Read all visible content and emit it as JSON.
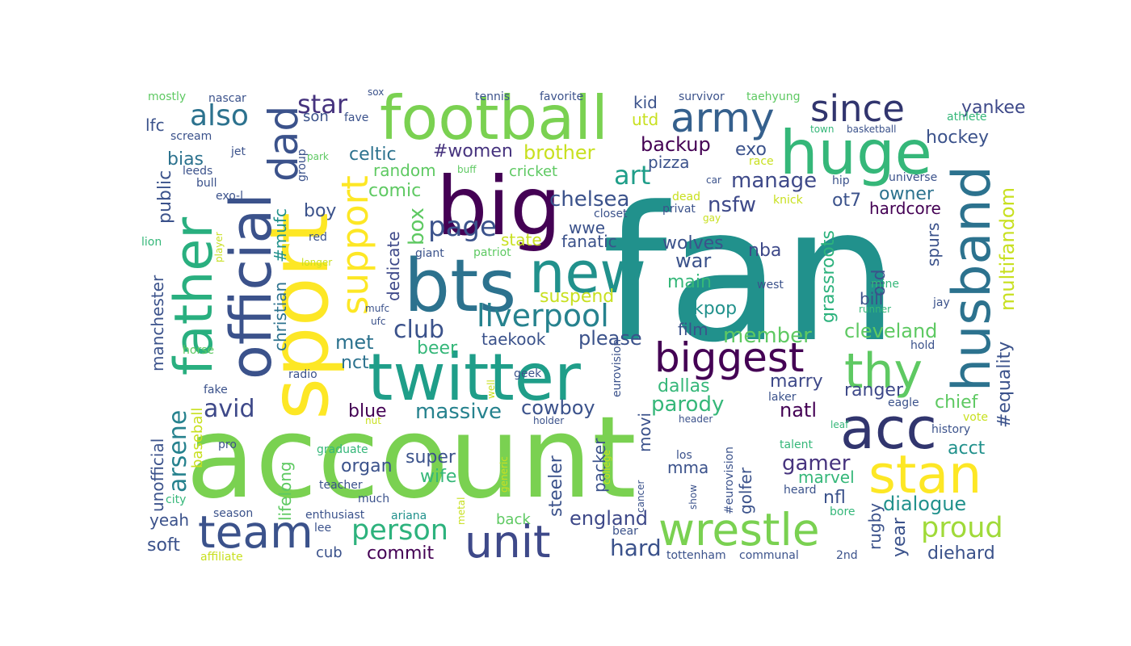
{
  "palette": {
    "darkpurple": "#46337e",
    "indigo": "#3b4e8c",
    "blue": "#33628d",
    "teal": "#218f8d",
    "tealgreen": "#1fa188",
    "green": "#2db27d",
    "lime": "#5ec962",
    "lightgreen": "#79d151",
    "yellow": "#dde318",
    "deeppurple": "#440154"
  },
  "words": [
    {
      "text": "fan",
      "color": "#21918c"
    },
    {
      "text": "account",
      "color": "#7ad151"
    },
    {
      "text": "sport",
      "color": "#fde725"
    },
    {
      "text": "big",
      "color": "#440154"
    },
    {
      "text": "twitter",
      "color": "#1f9e89"
    },
    {
      "text": "bts",
      "color": "#2c728e"
    },
    {
      "text": "football",
      "color": "#7ad151"
    },
    {
      "text": "huge",
      "color": "#35b779"
    },
    {
      "text": "official",
      "color": "#3b528b"
    },
    {
      "text": "new",
      "color": "#21918c"
    },
    {
      "text": "acc",
      "color": "#31356e"
    },
    {
      "text": "husband",
      "color": "#2c728e"
    },
    {
      "text": "father",
      "color": "#29af7f"
    },
    {
      "text": "stan",
      "color": "#fde725"
    },
    {
      "text": "wrestle",
      "color": "#7ad151"
    },
    {
      "text": "unit",
      "color": "#3e4989"
    },
    {
      "text": "team",
      "color": "#3b528b"
    },
    {
      "text": "biggest",
      "color": "#440154"
    },
    {
      "text": "thy",
      "color": "#5ec962"
    },
    {
      "text": "dad",
      "color": "#3b528b"
    },
    {
      "text": "support",
      "color": "#fde725"
    },
    {
      "text": "army",
      "color": "#35608d"
    },
    {
      "text": "since",
      "color": "#31356e"
    },
    {
      "text": "liverpool",
      "color": "#26828e"
    },
    {
      "text": "person",
      "color": "#2db27d"
    },
    {
      "text": "proud",
      "color": "#a0da39"
    },
    {
      "text": "also",
      "color": "#2c728e"
    },
    {
      "text": "star",
      "color": "#46337e"
    },
    {
      "text": "art",
      "color": "#1f9e89"
    },
    {
      "text": "page",
      "color": "#3b528b"
    },
    {
      "text": "club",
      "color": "#3b528b"
    },
    {
      "text": "arsene",
      "color": "#26828e"
    },
    {
      "text": "avid",
      "color": "#3e4989"
    },
    {
      "text": "multifandom",
      "color": "#c8e020"
    },
    {
      "text": "gamer",
      "color": "#46337e"
    },
    {
      "text": "hard",
      "color": "#3b528b"
    },
    {
      "text": "yankee",
      "color": "#3e4989"
    },
    {
      "text": "hockey",
      "color": "#3b528b"
    },
    {
      "text": "manage",
      "color": "#3e4989"
    },
    {
      "text": "chelsea",
      "color": "#3b528b"
    },
    {
      "text": "backup",
      "color": "#440154"
    },
    {
      "text": "exo",
      "color": "#3b528b"
    },
    {
      "text": "nsfw",
      "color": "#3e4989"
    },
    {
      "text": "owner",
      "color": "#2c728e"
    },
    {
      "text": "ot7",
      "color": "#3b528b"
    },
    {
      "text": "grassroots",
      "color": "#2db27d"
    },
    {
      "text": "hardcore",
      "color": "#440154"
    },
    {
      "text": "celtic",
      "color": "#2c728e"
    },
    {
      "text": "#women",
      "color": "#46337e"
    },
    {
      "text": "brother",
      "color": "#c8e020"
    },
    {
      "text": "random",
      "color": "#5ec962"
    },
    {
      "text": "cricket",
      "color": "#5ec962"
    },
    {
      "text": "comic",
      "color": "#5ec962"
    },
    {
      "text": "pizza",
      "color": "#3b528b"
    },
    {
      "text": "massive",
      "color": "#26828e"
    },
    {
      "text": "cowboy",
      "color": "#3b528b"
    },
    {
      "text": "parody",
      "color": "#35b779"
    },
    {
      "text": "dialogue",
      "color": "#21918c"
    },
    {
      "text": "diehard",
      "color": "#3b528b"
    },
    {
      "text": "commit",
      "color": "#440154"
    },
    {
      "text": "england",
      "color": "#3e4989"
    },
    {
      "text": "member",
      "color": "#5ec962"
    },
    {
      "text": "cleveland",
      "color": "#5ec962"
    },
    {
      "text": "ranger",
      "color": "#3e4989"
    },
    {
      "text": "chief",
      "color": "#5ec962"
    },
    {
      "text": "acct",
      "color": "#21918c"
    },
    {
      "text": "natl",
      "color": "#440154"
    },
    {
      "text": "marry",
      "color": "#3e4989"
    },
    {
      "text": "dallas",
      "color": "#35b779"
    },
    {
      "text": "blue",
      "color": "#440154"
    },
    {
      "text": "organ",
      "color": "#3b528b"
    },
    {
      "text": "super",
      "color": "#3b528b"
    },
    {
      "text": "wife",
      "color": "#35b779"
    },
    {
      "text": "yeah",
      "color": "#3b528b"
    },
    {
      "text": "soft",
      "color": "#3b528b"
    },
    {
      "text": "cub",
      "color": "#3b528b"
    },
    {
      "text": "kpop",
      "color": "#21918c"
    },
    {
      "text": "main",
      "color": "#35b779"
    },
    {
      "text": "war",
      "color": "#3b528b"
    },
    {
      "text": "nba",
      "color": "#3e4989"
    },
    {
      "text": "wolves",
      "color": "#3b528b"
    },
    {
      "text": "fanatic",
      "color": "#3b528b"
    },
    {
      "text": "state",
      "color": "#c8e020"
    },
    {
      "text": "wwe",
      "color": "#3b528b"
    },
    {
      "text": "box",
      "color": "#5ec962"
    },
    {
      "text": "dedicate",
      "color": "#3e4989"
    },
    {
      "text": "suspend",
      "color": "#c8e020"
    },
    {
      "text": "please",
      "color": "#3b528b"
    },
    {
      "text": "taekook",
      "color": "#3b528b"
    },
    {
      "text": "film",
      "color": "#3b528b"
    },
    {
      "text": "met",
      "color": "#2c728e"
    },
    {
      "text": "beer",
      "color": "#35b779"
    },
    {
      "text": "nct",
      "color": "#2c728e"
    },
    {
      "text": "public",
      "color": "#3b528b"
    },
    {
      "text": "bias",
      "color": "#2c728e"
    },
    {
      "text": "lfc",
      "color": "#3b528b"
    },
    {
      "text": "boy",
      "color": "#3b528b"
    },
    {
      "text": "son",
      "color": "#3b528b"
    },
    {
      "text": "kid",
      "color": "#3b528b"
    },
    {
      "text": "utd",
      "color": "#c8e020"
    },
    {
      "text": "manchester",
      "color": "#3b528b"
    },
    {
      "text": "christian",
      "color": "#2c728e"
    },
    {
      "text": "#mufc",
      "color": "#21918c"
    },
    {
      "text": "unofficial",
      "color": "#3b528b"
    },
    {
      "text": "lifelong",
      "color": "#5ec962"
    },
    {
      "text": "baseball",
      "color": "#c8e020"
    },
    {
      "text": "steeler",
      "color": "#3b528b"
    },
    {
      "text": "packer",
      "color": "#3b528b"
    },
    {
      "text": "movi",
      "color": "#3b528b"
    },
    {
      "text": "mma",
      "color": "#3b528b"
    },
    {
      "text": "golfer",
      "color": "#3b528b"
    },
    {
      "text": "marvel",
      "color": "#35b779"
    },
    {
      "text": "nfl",
      "color": "#3b528b"
    },
    {
      "text": "rugby",
      "color": "#3b528b"
    },
    {
      "text": "year",
      "color": "#3b528b"
    },
    {
      "text": "#equality",
      "color": "#3b528b"
    },
    {
      "text": "spurs",
      "color": "#3b528b"
    },
    {
      "text": "old",
      "color": "#3b528b"
    },
    {
      "text": "bill",
      "color": "#3b528b"
    },
    {
      "text": "back",
      "color": "#5ec962"
    },
    {
      "text": "tennis",
      "color": "#3b528b"
    },
    {
      "text": "favorite",
      "color": "#3b528b"
    },
    {
      "text": "survivor",
      "color": "#3b528b"
    },
    {
      "text": "taehyung",
      "color": "#5ec962"
    },
    {
      "text": "mostly",
      "color": "#5ec962"
    },
    {
      "text": "nascar",
      "color": "#3b528b"
    },
    {
      "text": "sox",
      "color": "#3b528b"
    },
    {
      "text": "scream",
      "color": "#3b528b"
    },
    {
      "text": "fave",
      "color": "#3b528b"
    },
    {
      "text": "athlete",
      "color": "#35b779"
    },
    {
      "text": "town",
      "color": "#35b779"
    },
    {
      "text": "basketball",
      "color": "#3b528b"
    },
    {
      "text": "jet",
      "color": "#3b528b"
    },
    {
      "text": "park",
      "color": "#5ec962"
    },
    {
      "text": "group",
      "color": "#3b528b"
    },
    {
      "text": "leeds",
      "color": "#3b528b"
    },
    {
      "text": "bull",
      "color": "#3b528b"
    },
    {
      "text": "buff",
      "color": "#5ec962"
    },
    {
      "text": "race",
      "color": "#c8e020"
    },
    {
      "text": "car",
      "color": "#3b528b"
    },
    {
      "text": "hip",
      "color": "#3b528b"
    },
    {
      "text": "universe",
      "color": "#3b528b"
    },
    {
      "text": "exo-l",
      "color": "#3b528b"
    },
    {
      "text": "closet",
      "color": "#3b528b"
    },
    {
      "text": "dead",
      "color": "#c8e020"
    },
    {
      "text": "privat",
      "color": "#3b528b"
    },
    {
      "text": "gay",
      "color": "#c8e020"
    },
    {
      "text": "knick",
      "color": "#c8e020"
    },
    {
      "text": "lion",
      "color": "#35b779"
    },
    {
      "text": "player",
      "color": "#c8e020"
    },
    {
      "text": "red",
      "color": "#3b528b"
    },
    {
      "text": "longer",
      "color": "#c8e020"
    },
    {
      "text": "giant",
      "color": "#3b528b"
    },
    {
      "text": "patriot",
      "color": "#5ec962"
    },
    {
      "text": "mufc",
      "color": "#3b528b"
    },
    {
      "text": "ufc",
      "color": "#3b528b"
    },
    {
      "text": "west",
      "color": "#3b528b"
    },
    {
      "text": "mine",
      "color": "#35b779"
    },
    {
      "text": "runner",
      "color": "#35b779"
    },
    {
      "text": "jay",
      "color": "#3b528b"
    },
    {
      "text": "horse",
      "color": "#5ec962"
    },
    {
      "text": "hold",
      "color": "#3b528b"
    },
    {
      "text": "radio",
      "color": "#3b528b"
    },
    {
      "text": "eurovision",
      "color": "#3b528b"
    },
    {
      "text": "geek",
      "color": "#3b528b"
    },
    {
      "text": "well",
      "color": "#c8e020"
    },
    {
      "text": "fake",
      "color": "#3b528b"
    },
    {
      "text": "laker",
      "color": "#3b528b"
    },
    {
      "text": "eagle",
      "color": "#3b528b"
    },
    {
      "text": "vote",
      "color": "#c8e020"
    },
    {
      "text": "nut",
      "color": "#c8e020"
    },
    {
      "text": "holder",
      "color": "#3b528b"
    },
    {
      "text": "header",
      "color": "#3b528b"
    },
    {
      "text": "leaf",
      "color": "#35b779"
    },
    {
      "text": "history",
      "color": "#3b528b"
    },
    {
      "text": "pro",
      "color": "#3b528b"
    },
    {
      "text": "graduate",
      "color": "#35b779"
    },
    {
      "text": "generic",
      "color": "#c8e020"
    },
    {
      "text": "college",
      "color": "#c8e020"
    },
    {
      "text": "los",
      "color": "#3b528b"
    },
    {
      "text": "#eurovision",
      "color": "#3b528b"
    },
    {
      "text": "talent",
      "color": "#35b779"
    },
    {
      "text": "city",
      "color": "#35b779"
    },
    {
      "text": "teacher",
      "color": "#3b528b"
    },
    {
      "text": "much",
      "color": "#3b528b"
    },
    {
      "text": "cancer",
      "color": "#3b528b"
    },
    {
      "text": "show",
      "color": "#3b528b"
    },
    {
      "text": "heard",
      "color": "#3b528b"
    },
    {
      "text": "season",
      "color": "#3b528b"
    },
    {
      "text": "enthusiast",
      "color": "#3b528b"
    },
    {
      "text": "ariana",
      "color": "#21918c"
    },
    {
      "text": "metal",
      "color": "#c8e020"
    },
    {
      "text": "bore",
      "color": "#35b779"
    },
    {
      "text": "lee",
      "color": "#3b528b"
    },
    {
      "text": "bear",
      "color": "#3b528b"
    },
    {
      "text": "affiliate",
      "color": "#c8e020"
    },
    {
      "text": "tottenham",
      "color": "#3b528b"
    },
    {
      "text": "communal",
      "color": "#3b528b"
    },
    {
      "text": "2nd",
      "color": "#3b528b"
    }
  ]
}
